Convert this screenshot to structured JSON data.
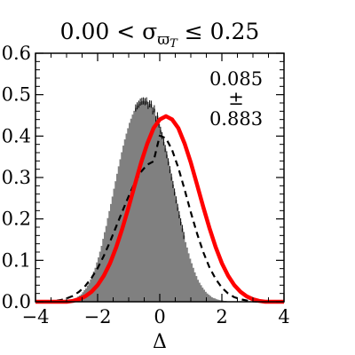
{
  "chart_data": {
    "type": "bar",
    "title": {
      "prefix": "0.00 < σ",
      "subscript": "ϖ",
      "subsubscript": "T",
      "suffix": " ≤ 0.25"
    },
    "xlabel": "Δ",
    "ylabel": "",
    "xlim": [
      -4,
      4
    ],
    "ylim": [
      0,
      0.6
    ],
    "xticks": [
      -4,
      -2,
      0,
      2,
      4
    ],
    "xtick_labels": [
      "−4",
      "−2",
      "0",
      "2",
      "4"
    ],
    "yticks": [
      0,
      0.1,
      0.2,
      0.3,
      0.4,
      0.5,
      0.6
    ],
    "ytick_labels": [
      "0.0",
      "0.1",
      "0.2",
      "0.3",
      "0.4",
      "0.5",
      "0.6"
    ],
    "annotation": [
      "0.085",
      "±",
      "0.883"
    ],
    "grid": false,
    "histogram": {
      "color": "#808080",
      "bin_width": 0.05,
      "bin_centers": [
        -2.975,
        -2.925,
        -2.875,
        -2.825,
        -2.775,
        -2.725,
        -2.675,
        -2.625,
        -2.575,
        -2.525,
        -2.475,
        -2.425,
        -2.375,
        -2.325,
        -2.275,
        -2.225,
        -2.175,
        -2.125,
        -2.075,
        -2.025,
        -1.975,
        -1.925,
        -1.875,
        -1.825,
        -1.775,
        -1.725,
        -1.675,
        -1.625,
        -1.575,
        -1.525,
        -1.475,
        -1.425,
        -1.375,
        -1.325,
        -1.275,
        -1.225,
        -1.175,
        -1.125,
        -1.075,
        -1.025,
        -0.975,
        -0.925,
        -0.875,
        -0.825,
        -0.775,
        -0.725,
        -0.675,
        -0.625,
        -0.575,
        -0.525,
        -0.475,
        -0.425,
        -0.375,
        -0.325,
        -0.275,
        -0.225,
        -0.175,
        -0.125,
        -0.075,
        -0.025,
        0.025,
        0.075,
        0.125,
        0.175,
        0.225,
        0.275,
        0.325,
        0.375,
        0.425,
        0.475,
        0.525,
        0.575,
        0.625,
        0.675,
        0.725,
        0.775,
        0.825,
        0.875,
        0.925,
        0.975,
        1.025,
        1.075,
        1.125,
        1.175,
        1.225,
        1.275,
        1.325,
        1.375,
        1.425,
        1.475,
        1.525,
        1.575,
        1.625,
        1.675,
        1.725,
        1.775,
        1.825,
        1.875,
        1.925,
        1.975,
        2.025,
        2.075,
        2.125,
        2.175,
        2.225,
        2.275,
        2.325,
        2.375,
        2.425,
        2.475,
        2.525,
        2.575,
        2.625,
        2.675,
        2.725,
        2.775,
        2.825,
        2.875,
        2.925,
        2.975
      ],
      "values": [
        0.003,
        0.003,
        0.004,
        0.005,
        0.006,
        0.008,
        0.01,
        0.013,
        0.015,
        0.018,
        0.023,
        0.028,
        0.032,
        0.039,
        0.045,
        0.054,
        0.063,
        0.073,
        0.082,
        0.095,
        0.107,
        0.121,
        0.135,
        0.152,
        0.168,
        0.183,
        0.202,
        0.219,
        0.236,
        0.254,
        0.273,
        0.291,
        0.309,
        0.327,
        0.344,
        0.361,
        0.377,
        0.392,
        0.406,
        0.419,
        0.432,
        0.442,
        0.452,
        0.461,
        0.468,
        0.473,
        0.477,
        0.482,
        0.484,
        0.485,
        0.483,
        0.485,
        0.474,
        0.478,
        0.477,
        0.461,
        0.466,
        0.44,
        0.449,
        0.429,
        0.414,
        0.401,
        0.386,
        0.37,
        0.355,
        0.338,
        0.319,
        0.301,
        0.283,
        0.265,
        0.246,
        0.228,
        0.21,
        0.193,
        0.177,
        0.16,
        0.144,
        0.131,
        0.117,
        0.104,
        0.093,
        0.082,
        0.071,
        0.062,
        0.053,
        0.046,
        0.04,
        0.034,
        0.029,
        0.024,
        0.02,
        0.017,
        0.014,
        0.011,
        0.009,
        0.008,
        0.006,
        0.005,
        0.004,
        0.003,
        0.003,
        0.002,
        0.002,
        0.001,
        0.001,
        0.001,
        0.001,
        0.0,
        0.0,
        0.0,
        0.0,
        0.0,
        0.0,
        0.0,
        0.0,
        0.0,
        0.0,
        0.0,
        0.0,
        0.0
      ]
    },
    "series": [
      {
        "style": "solid",
        "color": "#ff0000",
        "x": [
          -4.0,
          -3.8,
          -3.6,
          -3.4,
          -3.2,
          -3.0,
          -2.8,
          -2.6,
          -2.4,
          -2.2,
          -2.0,
          -1.8,
          -1.6,
          -1.4,
          -1.2,
          -1.0,
          -0.8,
          -0.6,
          -0.4,
          -0.2,
          0.0,
          0.2,
          0.4,
          0.6,
          0.8,
          1.0,
          1.2,
          1.4,
          1.6,
          1.8,
          2.0,
          2.2,
          2.4,
          2.6,
          2.8,
          3.0,
          3.2,
          3.4,
          3.6,
          3.8,
          4.0
        ],
        "y": [
          0.0,
          0.0,
          0.0,
          0.0,
          0.0,
          0.0,
          0.002,
          0.006,
          0.013,
          0.024,
          0.04,
          0.063,
          0.093,
          0.132,
          0.178,
          0.229,
          0.283,
          0.336,
          0.382,
          0.419,
          0.44,
          0.448,
          0.44,
          0.419,
          0.382,
          0.336,
          0.283,
          0.229,
          0.178,
          0.132,
          0.093,
          0.063,
          0.04,
          0.024,
          0.013,
          0.006,
          0.002,
          0.0,
          0.0,
          0.0,
          0.0
        ]
      },
      {
        "style": "dashed",
        "color": "#000000",
        "x": [
          -4.0,
          -3.8,
          -3.6,
          -3.4,
          -3.2,
          -3.0,
          -2.8,
          -2.6,
          -2.4,
          -2.2,
          -2.0,
          -1.8,
          -1.6,
          -1.4,
          -1.2,
          -1.0,
          -0.8,
          -0.6,
          -0.4,
          -0.2,
          0.0,
          0.2,
          0.4,
          0.6,
          0.8,
          1.0,
          1.2,
          1.4,
          1.6,
          1.8,
          2.0,
          2.2,
          2.4,
          2.6,
          2.8,
          3.0,
          3.2,
          3.4,
          3.6,
          3.8,
          4.0
        ],
        "y": [
          0.0,
          0.0,
          0.001,
          0.002,
          0.004,
          0.008,
          0.014,
          0.024,
          0.038,
          0.057,
          0.081,
          0.111,
          0.145,
          0.182,
          0.219,
          0.255,
          0.288,
          0.314,
          0.331,
          0.339,
          0.401,
          0.395,
          0.366,
          0.323,
          0.271,
          0.216,
          0.165,
          0.12,
          0.083,
          0.055,
          0.034,
          0.02,
          0.011,
          0.006,
          0.003,
          0.001,
          0.0,
          0.0,
          0.0,
          0.0,
          0.0
        ]
      }
    ]
  }
}
